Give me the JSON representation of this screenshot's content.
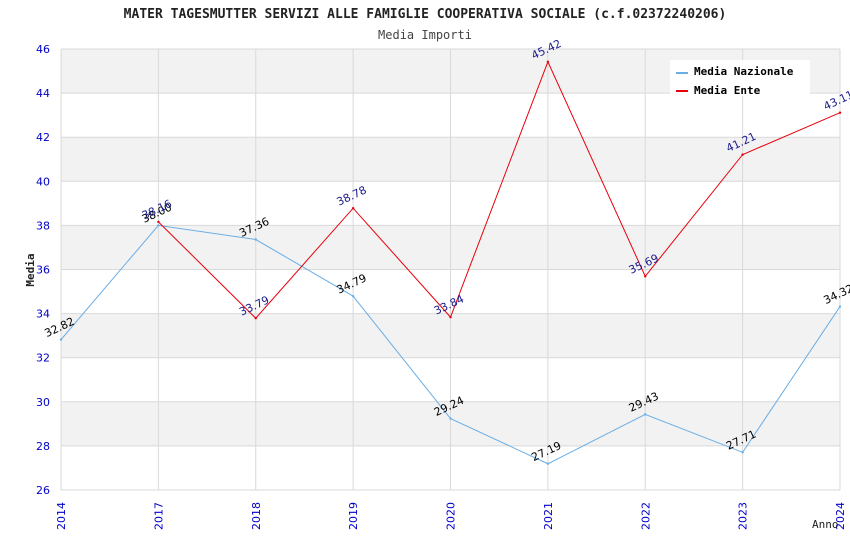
{
  "chart_data": {
    "type": "line",
    "title": "MATER TAGESMUTTER SERVIZI ALLE FAMIGLIE COOPERATIVA SOCIALE (c.f.02372240206)",
    "subtitle": "Media Importi",
    "xlabel": "Anno",
    "ylabel": "Media",
    "categories": [
      "2014",
      "2017",
      "2018",
      "2019",
      "2020",
      "2021",
      "2022",
      "2023",
      "2024"
    ],
    "ylim": [
      26,
      46
    ],
    "yticks": [
      "26",
      "28",
      "30",
      "32",
      "34",
      "36",
      "38",
      "40",
      "42",
      "44",
      "46"
    ],
    "grid": true,
    "legend_position": "top-right",
    "series": [
      {
        "name": "Media Nazionale",
        "color": "#6aaee6",
        "label_color": "#000000",
        "values": [
          32.82,
          38.0,
          37.36,
          34.79,
          29.24,
          27.19,
          29.43,
          27.71,
          34.32
        ],
        "labels": [
          "32.82",
          "38.00",
          "37.36",
          "34.79",
          "29.24",
          "27.19",
          "29.43",
          "27.71",
          "34.32"
        ]
      },
      {
        "name": "Media Ente",
        "color": "#e8000b",
        "label_color": "#1a1a8c",
        "values": [
          null,
          38.16,
          33.79,
          38.78,
          33.84,
          45.42,
          35.69,
          41.21,
          43.11
        ],
        "labels": [
          null,
          "38.16",
          "33.79",
          "38.78",
          "33.84",
          "45.42",
          "35.69",
          "41.21",
          "43.11"
        ]
      }
    ],
    "colors": {
      "axis_tick": "#0000c8",
      "band": "#f2f2f2",
      "grid": "#d9d9d9",
      "text": "#333333"
    }
  }
}
